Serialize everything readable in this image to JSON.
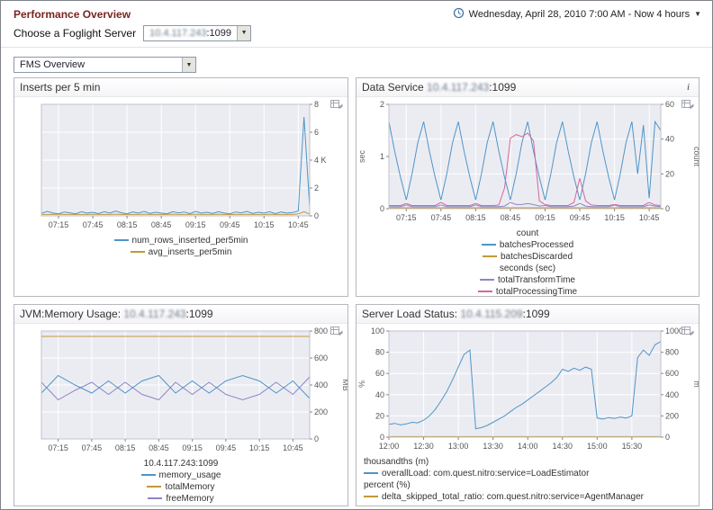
{
  "header": {
    "title": "Performance Overview",
    "time_label": "Wednesday, April 28, 2010 7:00 AM - Now 4 hours",
    "server_picker_label": "Choose a Foglight Server",
    "server_value_ip": "10.4.117.243",
    "server_value_port": ":1099",
    "view_select_value": "FMS Overview"
  },
  "panels": [
    {
      "title_prefix": "Inserts per 5 min",
      "server": "",
      "port": ""
    },
    {
      "title_prefix": "Data Service ",
      "server": "10.4.117.243",
      "port": ":1099",
      "info": "i"
    },
    {
      "title_prefix": "JVM:Memory Usage: ",
      "server": "10.4.117.243",
      "port": ":1099"
    },
    {
      "title_prefix": "Server Load Status: ",
      "server": "10.4.115.209",
      "port": ":1099"
    }
  ],
  "chart_data": [
    {
      "type": "line",
      "title": "Inserts per 5 min",
      "n": 48,
      "x_tick_labels": [
        "07:15",
        "07:45",
        "08:15",
        "08:45",
        "09:15",
        "09:45",
        "10:15",
        "10:45"
      ],
      "x_tick_index": [
        3,
        9,
        15,
        21,
        27,
        33,
        39,
        45
      ],
      "right_axis": {
        "label": "",
        "ticks": [
          "0",
          "2",
          "4 K",
          "6",
          "8"
        ],
        "range": [
          0,
          8
        ]
      },
      "legend_align": "center",
      "legend": [
        {
          "type": "item",
          "label": "num_rows_inserted_per5min",
          "color": "#4e95c7"
        },
        {
          "type": "item",
          "label": "avg_inserts_per5min",
          "color": "#c2993b"
        }
      ],
      "series": [
        {
          "name": "avg_inserts_per5min",
          "axis": "right",
          "color": "#c2993b",
          "values": [
            0.1,
            0.1,
            0.1,
            0.12,
            0.1,
            0.1,
            0.1,
            0.1,
            0.1,
            0.12,
            0.1,
            0.1,
            0.1,
            0.12,
            0.1,
            0.1,
            0.1,
            0.1,
            0.12,
            0.1,
            0.1,
            0.1,
            0.1,
            0.12,
            0.1,
            0.1,
            0.1,
            0.12,
            0.1,
            0.1,
            0.1,
            0.12,
            0.1,
            0.1,
            0.1,
            0.1,
            0.12,
            0.1,
            0.1,
            0.1,
            0.12,
            0.1,
            0.1,
            0.1,
            0.1,
            0.14,
            0.3,
            0.12
          ]
        },
        {
          "name": "num_rows_inserted_per5min",
          "axis": "right",
          "color": "#4e95c7",
          "values": [
            0.18,
            0.32,
            0.2,
            0.15,
            0.28,
            0.22,
            0.15,
            0.3,
            0.2,
            0.26,
            0.16,
            0.3,
            0.2,
            0.34,
            0.22,
            0.15,
            0.28,
            0.2,
            0.32,
            0.18,
            0.26,
            0.2,
            0.15,
            0.3,
            0.22,
            0.28,
            0.16,
            0.32,
            0.2,
            0.26,
            0.18,
            0.3,
            0.2,
            0.15,
            0.28,
            0.22,
            0.32,
            0.18,
            0.26,
            0.2,
            0.3,
            0.16,
            0.28,
            0.2,
            0.24,
            0.35,
            7.1,
            0.6
          ]
        }
      ]
    },
    {
      "type": "line",
      "title": "Data Service 10.4.117.243:1099",
      "n": 48,
      "x_tick_labels": [
        "07:15",
        "07:45",
        "08:15",
        "08:45",
        "09:15",
        "09:45",
        "10:15",
        "10:45"
      ],
      "x_tick_index": [
        3,
        9,
        15,
        21,
        27,
        33,
        39,
        45
      ],
      "left_axis": {
        "label": "sec",
        "ticks": [
          "0",
          "1",
          "2"
        ],
        "range": [
          0,
          2
        ]
      },
      "right_axis": {
        "label": "count",
        "ticks": [
          "0",
          "20",
          "40",
          "60"
        ],
        "range": [
          0,
          60
        ]
      },
      "legend_align": "center",
      "legend": [
        {
          "type": "header",
          "label": "count"
        },
        {
          "type": "item",
          "label": "batchesProcessed",
          "color": "#4e95c7"
        },
        {
          "type": "item",
          "label": "batchesDiscarded",
          "color": "#c2993b"
        },
        {
          "type": "header",
          "label": "seconds (sec)"
        },
        {
          "type": "item",
          "label": "totalTransformTime",
          "color": "#8d85c6"
        },
        {
          "type": "item",
          "label": "totalProcessingTime",
          "color": "#d4679f"
        }
      ],
      "series": [
        {
          "name": "batchesDiscarded",
          "axis": "right",
          "color": "#c2993b",
          "values": [
            0.5,
            0.5,
            0.5,
            0.5,
            0.5,
            0.5,
            0.5,
            0.5,
            0.5,
            0.5,
            0.5,
            0.5,
            0.5,
            0.5,
            0.5,
            0.5,
            0.5,
            0.5,
            0.5,
            0.5,
            0.5,
            0.5,
            0.5,
            0.5,
            0.5,
            0.5,
            0.5,
            0.5,
            0.5,
            0.5,
            0.5,
            0.5,
            0.5,
            0.5,
            0.5,
            0.5,
            0.5,
            0.5,
            0.5,
            0.5,
            0.5,
            0.5,
            0.5,
            0.5,
            0.5,
            0.5,
            0.5,
            0.5
          ]
        },
        {
          "name": "totalTransformTime",
          "axis": "left",
          "color": "#8d85c6",
          "values": [
            0.04,
            0.04,
            0.04,
            0.07,
            0.04,
            0.04,
            0.04,
            0.04,
            0.04,
            0.07,
            0.04,
            0.04,
            0.04,
            0.04,
            0.04,
            0.07,
            0.04,
            0.04,
            0.04,
            0.04,
            0.05,
            0.12,
            0.08,
            0.08,
            0.1,
            0.08,
            0.05,
            0.06,
            0.04,
            0.04,
            0.04,
            0.04,
            0.05,
            0.1,
            0.05,
            0.04,
            0.04,
            0.04,
            0.04,
            0.07,
            0.04,
            0.04,
            0.04,
            0.04,
            0.04,
            0.07,
            0.05,
            0.04
          ]
        },
        {
          "name": "batchesProcessed",
          "axis": "right",
          "color": "#4e95c7",
          "values": [
            50,
            33,
            18,
            5,
            20,
            38,
            50,
            33,
            18,
            5,
            20,
            38,
            50,
            33,
            18,
            5,
            20,
            38,
            50,
            33,
            18,
            5,
            20,
            38,
            50,
            33,
            18,
            5,
            20,
            38,
            50,
            33,
            18,
            5,
            20,
            38,
            50,
            33,
            18,
            5,
            20,
            38,
            50,
            20,
            48,
            6,
            50,
            45
          ]
        },
        {
          "name": "totalProcessingTime",
          "axis": "left",
          "color": "#d4679f",
          "values": [
            0.06,
            0.06,
            0.06,
            0.1,
            0.06,
            0.06,
            0.06,
            0.06,
            0.06,
            0.12,
            0.06,
            0.06,
            0.06,
            0.06,
            0.06,
            0.1,
            0.06,
            0.06,
            0.06,
            0.07,
            0.4,
            1.35,
            1.42,
            1.38,
            1.45,
            1.3,
            0.15,
            0.08,
            0.06,
            0.06,
            0.06,
            0.06,
            0.12,
            0.58,
            0.15,
            0.07,
            0.06,
            0.06,
            0.06,
            0.08,
            0.06,
            0.06,
            0.06,
            0.06,
            0.06,
            0.12,
            0.07,
            0.06
          ]
        }
      ]
    },
    {
      "type": "line",
      "title": "JVM:Memory Usage: 10.4.117.243:1099",
      "n": 17,
      "x_tick_labels": [
        "07:15",
        "07:45",
        "08:15",
        "08:45",
        "09:15",
        "09:45",
        "10:15",
        "10:45"
      ],
      "x_tick_index": [
        1,
        3,
        5,
        7,
        9,
        11,
        13,
        15
      ],
      "right_axis": {
        "label": "MB",
        "ticks": [
          "0",
          "200",
          "400",
          "600",
          "800"
        ],
        "range": [
          0,
          800
        ]
      },
      "legend_align": "center",
      "legend": [
        {
          "type": "header",
          "label": "10.4.117.243:1099"
        },
        {
          "type": "item",
          "label": "memory_usage",
          "color": "#4e95c7"
        },
        {
          "type": "item",
          "label": "totalMemory",
          "color": "#c2993b"
        },
        {
          "type": "item",
          "label": "freeMemory",
          "color": "#8d85c6"
        }
      ],
      "series": [
        {
          "name": "totalMemory",
          "axis": "right",
          "color": "#c2993b",
          "values": [
            760,
            760,
            760,
            760,
            760,
            760,
            760,
            760,
            760,
            760,
            760,
            760,
            760,
            760,
            760,
            760,
            760
          ]
        },
        {
          "name": "freeMemory",
          "axis": "right",
          "color": "#8d85c6",
          "values": [
            420,
            290,
            360,
            420,
            330,
            420,
            330,
            290,
            420,
            330,
            420,
            330,
            290,
            330,
            420,
            330,
            460
          ]
        },
        {
          "name": "memory_usage",
          "axis": "right",
          "color": "#4e95c7",
          "values": [
            340,
            470,
            400,
            340,
            430,
            340,
            430,
            470,
            340,
            430,
            340,
            430,
            470,
            430,
            340,
            430,
            300
          ]
        }
      ]
    },
    {
      "type": "line",
      "title": "Server Load Status: 10.4.115.209:1099",
      "n": 48,
      "x_tick_labels": [
        "12:00",
        "12:30",
        "13:00",
        "13:30",
        "14:00",
        "14:30",
        "15:00",
        "15:30"
      ],
      "x_tick_index": [
        0,
        6,
        12,
        18,
        24,
        30,
        36,
        42
      ],
      "left_axis": {
        "label": "%",
        "ticks": [
          "0",
          "20",
          "40",
          "60",
          "80",
          "100"
        ],
        "range": [
          0,
          100
        ]
      },
      "right_axis": {
        "label": "m",
        "ticks": [
          "0",
          "200",
          "400",
          "600",
          "800",
          "1000"
        ],
        "range": [
          0,
          1000
        ]
      },
      "legend_align": "left",
      "legend": [
        {
          "type": "header",
          "label": "thousandths (m)"
        },
        {
          "type": "item",
          "label": "overallLoad: com.quest.nitro:service=LoadEstimator",
          "color": "#4e95c7"
        },
        {
          "type": "header",
          "label": "percent (%)"
        },
        {
          "type": "item",
          "label": "delta_skipped_total_ratio: com.quest.nitro:service=AgentManager",
          "color": "#c2993b"
        }
      ],
      "series": [
        {
          "name": "delta_skipped_total_ratio: com.quest.nitro:service=AgentManager",
          "axis": "left",
          "color": "#c2993b",
          "values": [
            0.5,
            0.5,
            0.5,
            0.5,
            0.5,
            0.5,
            0.5,
            0.5,
            0.5,
            0.5,
            0.5,
            0.5,
            0.5,
            0.5,
            0.5,
            0.5,
            0.5,
            0.5,
            0.5,
            0.5,
            0.5,
            0.5,
            0.5,
            0.5,
            0.5,
            0.5,
            0.5,
            0.5,
            0.5,
            0.5,
            0.5,
            0.5,
            0.5,
            0.5,
            0.5,
            0.5,
            0.5,
            0.5,
            0.5,
            0.5,
            0.5,
            0.5,
            0.5,
            0.5,
            0.5,
            0.5,
            0.5,
            0.5
          ]
        },
        {
          "name": "overallLoad: com.quest.nitro:service=LoadEstimator",
          "axis": "right",
          "color": "#4e95c7",
          "values": [
            120,
            130,
            115,
            125,
            140,
            135,
            160,
            200,
            260,
            340,
            430,
            540,
            660,
            780,
            820,
            80,
            90,
            110,
            140,
            170,
            200,
            240,
            280,
            310,
            350,
            390,
            430,
            470,
            510,
            560,
            640,
            620,
            650,
            630,
            660,
            640,
            180,
            170,
            185,
            175,
            190,
            180,
            200,
            750,
            820,
            770,
            870,
            900
          ]
        }
      ]
    }
  ]
}
